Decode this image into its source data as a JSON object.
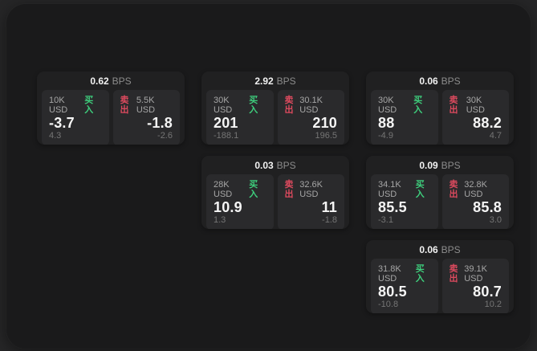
{
  "labels": {
    "bps_unit": "BPS",
    "buy": "买入",
    "sell": "卖出"
  },
  "colors": {
    "buy": "#3ecf7d",
    "sell": "#dd4a5e"
  },
  "cards": [
    {
      "bps": "0.62",
      "buy": {
        "notional": "10K USD",
        "value": "-3.7",
        "sub": "4.3"
      },
      "sell": {
        "notional": "5.5K USD",
        "value": "-1.8",
        "sub": "-2.6"
      }
    },
    {
      "bps": "2.92",
      "buy": {
        "notional": "30K USD",
        "value": "201",
        "sub": "-188.1"
      },
      "sell": {
        "notional": "30.1K USD",
        "value": "210",
        "sub": "196.5"
      }
    },
    {
      "bps": "0.06",
      "buy": {
        "notional": "30K USD",
        "value": "88",
        "sub": "-4.9"
      },
      "sell": {
        "notional": "30K USD",
        "value": "88.2",
        "sub": "4.7"
      }
    },
    {
      "bps": "0.03",
      "buy": {
        "notional": "28K USD",
        "value": "10.9",
        "sub": "1.3"
      },
      "sell": {
        "notional": "32.6K USD",
        "value": "11",
        "sub": "-1.8"
      }
    },
    {
      "bps": "0.09",
      "buy": {
        "notional": "34.1K USD",
        "value": "85.5",
        "sub": "-3.1"
      },
      "sell": {
        "notional": "32.8K USD",
        "value": "85.8",
        "sub": "3.0"
      }
    },
    {
      "bps": "0.06",
      "buy": {
        "notional": "31.8K USD",
        "value": "80.5",
        "sub": "-10.8"
      },
      "sell": {
        "notional": "39.1K USD",
        "value": "80.7",
        "sub": "10.2"
      }
    }
  ]
}
